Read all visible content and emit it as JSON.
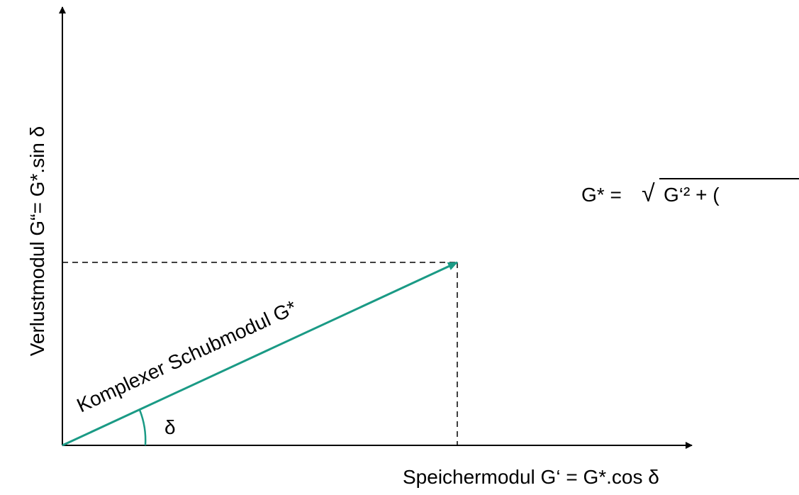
{
  "axes": {
    "y_label": "Verlustmodul G“= G*.sin δ",
    "x_label": "Speichermodul G‘ = G*.cos δ"
  },
  "vector": {
    "label": "Komplexer Schubmodul G*",
    "angle_label": "δ"
  },
  "formula": {
    "lhs": "G* =",
    "root": "√",
    "radicand": "G‘² + ("
  }
}
